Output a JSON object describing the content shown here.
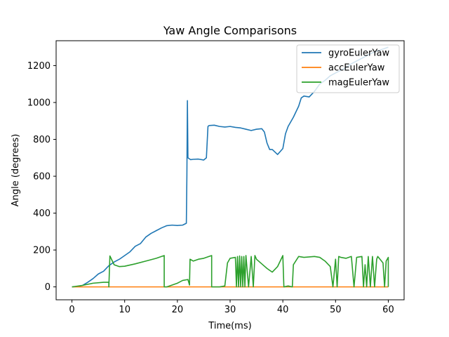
{
  "chart_data": {
    "type": "line",
    "title": "Yaw Angle Comparisons",
    "xlabel": "Time(ms)",
    "ylabel": "Angle (degrees)",
    "xlim": [
      -3,
      63
    ],
    "ylim": [
      -70,
      1335
    ],
    "xticks": [
      0,
      10,
      20,
      30,
      40,
      50,
      60
    ],
    "yticks": [
      0,
      200,
      400,
      600,
      800,
      1000,
      1200
    ],
    "grid": false,
    "legend_position": "upper right",
    "series": [
      {
        "name": "gyroEulerYaw",
        "color": "#1f77b4",
        "points": [
          [
            0,
            0
          ],
          [
            1,
            2
          ],
          [
            2,
            8
          ],
          [
            3,
            25
          ],
          [
            4,
            45
          ],
          [
            5,
            70
          ],
          [
            6,
            85
          ],
          [
            7,
            115
          ],
          [
            8,
            135
          ],
          [
            9,
            150
          ],
          [
            10,
            170
          ],
          [
            11,
            190
          ],
          [
            12,
            220
          ],
          [
            13,
            235
          ],
          [
            14,
            270
          ],
          [
            15,
            290
          ],
          [
            16,
            305
          ],
          [
            17,
            320
          ],
          [
            18,
            332
          ],
          [
            19,
            335
          ],
          [
            20,
            333
          ],
          [
            21,
            335
          ],
          [
            21.7,
            345
          ],
          [
            21.8,
            600
          ],
          [
            21.9,
            1010
          ],
          [
            22,
            700
          ],
          [
            22.5,
            690
          ],
          [
            23,
            692
          ],
          [
            24,
            693
          ],
          [
            25,
            688
          ],
          [
            25.5,
            700
          ],
          [
            25.8,
            870
          ],
          [
            26,
            875
          ],
          [
            27,
            877
          ],
          [
            28,
            870
          ],
          [
            29,
            867
          ],
          [
            30,
            870
          ],
          [
            31,
            865
          ],
          [
            32,
            862
          ],
          [
            33,
            855
          ],
          [
            34,
            848
          ],
          [
            35,
            855
          ],
          [
            36,
            858
          ],
          [
            36.5,
            840
          ],
          [
            37,
            780
          ],
          [
            37.5,
            745
          ],
          [
            38,
            745
          ],
          [
            39,
            718
          ],
          [
            40,
            750
          ],
          [
            40.5,
            830
          ],
          [
            41,
            870
          ],
          [
            42,
            920
          ],
          [
            43,
            980
          ],
          [
            43.5,
            1025
          ],
          [
            44,
            1035
          ],
          [
            45,
            1030
          ],
          [
            46,
            1060
          ],
          [
            47,
            1100
          ],
          [
            48,
            1120
          ],
          [
            49,
            1145
          ],
          [
            50,
            1160
          ],
          [
            51,
            1175
          ],
          [
            52,
            1190
          ],
          [
            53,
            1210
          ],
          [
            54,
            1225
          ],
          [
            55,
            1240
          ],
          [
            56,
            1255
          ],
          [
            57,
            1270
          ],
          [
            58,
            1280
          ],
          [
            59,
            1290
          ],
          [
            60,
            1300
          ]
        ]
      },
      {
        "name": "accEulerYaw",
        "color": "#ff7f0e",
        "points": [
          [
            0,
            0
          ],
          [
            60,
            0
          ]
        ]
      },
      {
        "name": "magEulerYaw",
        "color": "#2ca02c",
        "points": [
          [
            0,
            0
          ],
          [
            2,
            8
          ],
          [
            4,
            20
          ],
          [
            6,
            25
          ],
          [
            7,
            25
          ],
          [
            7,
            0
          ],
          [
            7.2,
            168
          ],
          [
            8,
            120
          ],
          [
            9,
            110
          ],
          [
            10,
            112
          ],
          [
            12,
            125
          ],
          [
            14,
            140
          ],
          [
            16,
            155
          ],
          [
            17,
            165
          ],
          [
            17.5,
            170
          ],
          [
            17.5,
            0
          ],
          [
            18,
            0
          ],
          [
            19,
            10
          ],
          [
            20,
            20
          ],
          [
            21,
            35
          ],
          [
            22,
            40
          ],
          [
            22.3,
            10
          ],
          [
            22.4,
            150
          ],
          [
            23,
            140
          ],
          [
            24,
            150
          ],
          [
            25,
            155
          ],
          [
            26,
            165
          ],
          [
            26.5,
            170
          ],
          [
            26.5,
            0
          ],
          [
            27,
            0
          ],
          [
            28,
            0
          ],
          [
            29,
            5
          ],
          [
            29.5,
            130
          ],
          [
            30,
            155
          ],
          [
            31,
            160
          ],
          [
            31.2,
            0
          ],
          [
            31.4,
            165
          ],
          [
            31.6,
            0
          ],
          [
            31.8,
            168
          ],
          [
            32,
            0
          ],
          [
            32.2,
            165
          ],
          [
            32.4,
            0
          ],
          [
            32.6,
            165
          ],
          [
            32.8,
            0
          ],
          [
            33,
            170
          ],
          [
            33.5,
            0
          ],
          [
            34,
            165
          ],
          [
            34.4,
            0
          ],
          [
            34.7,
            170
          ],
          [
            35,
            150
          ],
          [
            36,
            125
          ],
          [
            37,
            100
          ],
          [
            38,
            80
          ],
          [
            39,
            110
          ],
          [
            40,
            170
          ],
          [
            40.2,
            0
          ],
          [
            41,
            5
          ],
          [
            41.8,
            0
          ],
          [
            42,
            120
          ],
          [
            43,
            165
          ],
          [
            44,
            160
          ],
          [
            46,
            165
          ],
          [
            47,
            160
          ],
          [
            48,
            140
          ],
          [
            49,
            110
          ],
          [
            49.5,
            0
          ],
          [
            50,
            150
          ],
          [
            50.3,
            0
          ],
          [
            50.6,
            165
          ],
          [
            51,
            160
          ],
          [
            52,
            155
          ],
          [
            53,
            165
          ],
          [
            53.5,
            0
          ],
          [
            54,
            160
          ],
          [
            55,
            165
          ],
          [
            55.3,
            0
          ],
          [
            55.6,
            120
          ],
          [
            55.9,
            0
          ],
          [
            56.2,
            165
          ],
          [
            56.6,
            0
          ],
          [
            57,
            165
          ],
          [
            57.4,
            0
          ],
          [
            57.8,
            150
          ],
          [
            58,
            165
          ],
          [
            59,
            130
          ],
          [
            59.3,
            0
          ],
          [
            59.6,
            140
          ],
          [
            60,
            160
          ],
          [
            60,
            0
          ]
        ]
      }
    ]
  }
}
